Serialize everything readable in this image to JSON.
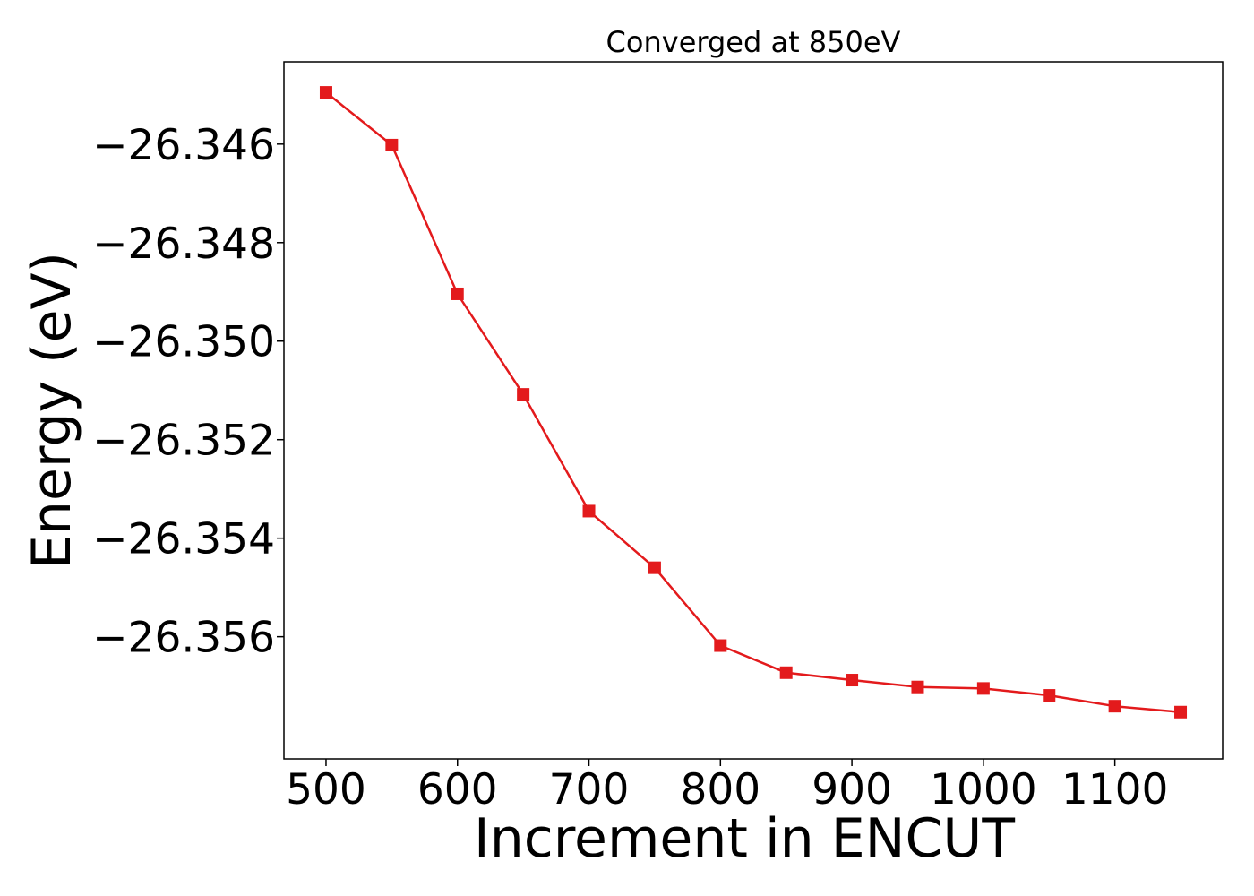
{
  "chart_data": {
    "type": "line",
    "title": "Converged at 850eV",
    "xlabel": "Increment in ENCUT",
    "ylabel": "Energy (eV)",
    "xlim": [
      468,
      1182
    ],
    "ylim": [
      -26.35848,
      -26.34433
    ],
    "x_ticks": [
      500,
      600,
      700,
      800,
      900,
      1000,
      1100
    ],
    "x_tick_labels": [
      "500",
      "600",
      "700",
      "800",
      "900",
      "1000",
      "1100"
    ],
    "y_ticks": [
      -26.346,
      -26.348,
      -26.35,
      -26.352,
      -26.354,
      -26.356
    ],
    "y_tick_labels": [
      "−26.346",
      "−26.348",
      "−26.350",
      "−26.352",
      "−26.354",
      "−26.356"
    ],
    "grid": false,
    "legend": "none",
    "series": [
      {
        "color": "#e31a1c",
        "marker": "square",
        "x": [
          500,
          550,
          600,
          650,
          700,
          750,
          800,
          850,
          900,
          950,
          1000,
          1050,
          1100,
          1150
        ],
        "y": [
          -26.34495,
          -26.34602,
          -26.34904,
          -26.35108,
          -26.35345,
          -26.3546,
          -26.35618,
          -26.35673,
          -26.35688,
          -26.35702,
          -26.35705,
          -26.35719,
          -26.35741,
          -26.35753
        ]
      }
    ]
  }
}
